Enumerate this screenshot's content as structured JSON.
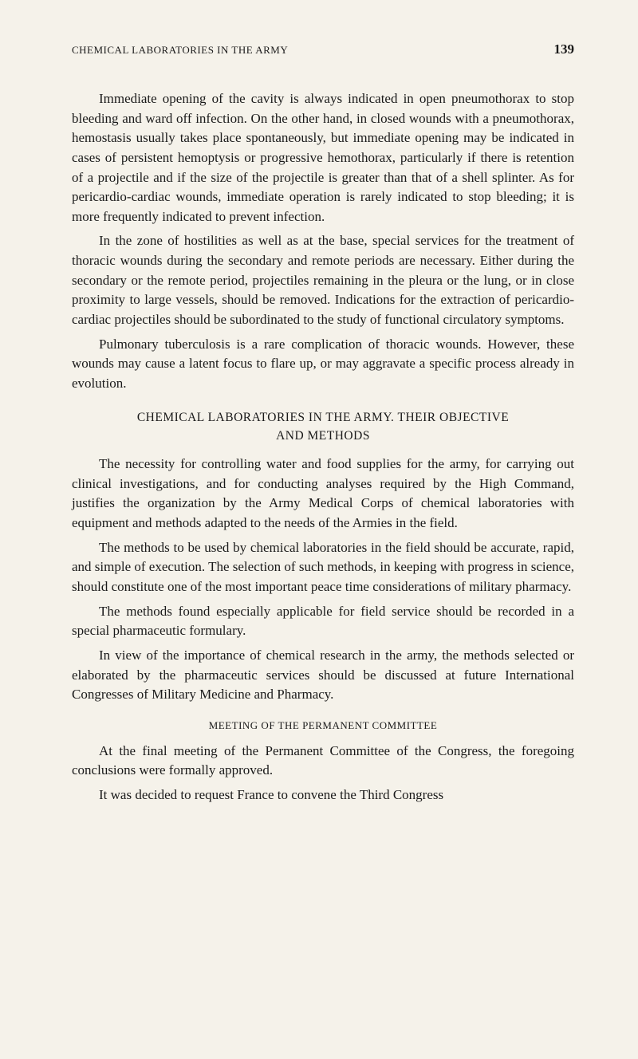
{
  "header": {
    "title": "CHEMICAL LABORATORIES IN THE ARMY",
    "page_number": "139"
  },
  "paragraphs": {
    "p1": "Immediate opening of the cavity is always indicated in open pneumothorax to stop bleeding and ward off infection. On the other hand, in closed wounds with a pneumothorax, hemostasis usually takes place spontaneously, but immediate opening may be indicated in cases of persistent hemoptysis or progressive hemothorax, particularly if there is retention of a projectile and if the size of the projectile is greater than that of a shell splinter. As for pericardio-cardiac wounds, immediate operation is rarely indicated to stop bleeding; it is more frequently indicated to prevent infection.",
    "p2": "In the zone of hostilities as well as at the base, special services for the treatment of thoracic wounds during the secondary and remote periods are necessary. Either during the secondary or the remote period, projectiles remaining in the pleura or the lung, or in close proximity to large vessels, should be removed. Indications for the extraction of pericardio-cardiac projectiles should be subordinated to the study of functional circulatory symptoms.",
    "p3": "Pulmonary tuberculosis is a rare complication of thoracic wounds. However, these wounds may cause a latent focus to flare up, or may aggravate a specific process already in evolution.",
    "p4": "The necessity for controlling water and food supplies for the army, for carrying out clinical investigations, and for conducting analyses required by the High Command, justifies the organization by the Army Medical Corps of chemical laboratories with equipment and methods adapted to the needs of the Armies in the field.",
    "p5": "The methods to be used by chemical laboratories in the field should be accurate, rapid, and simple of execution. The selection of such methods, in keeping with progress in science, should constitute one of the most important peace time considerations of military pharmacy.",
    "p6": "The methods found especially applicable for field service should be recorded in a special pharmaceutic formulary.",
    "p7": "In view of the importance of chemical research in the army, the methods selected or elaborated by the pharmaceutic services should be discussed at future International Congresses of Military Medicine and Pharmacy.",
    "p8": "At the final meeting of the Permanent Committee of the Congress, the foregoing conclusions were formally approved.",
    "p9": "It was decided to request France to convene the Third Congress"
  },
  "headings": {
    "h1_line1": "CHEMICAL LABORATORIES IN THE ARMY. THEIR OBJECTIVE",
    "h1_line2": "AND METHODS",
    "h2": "MEETING OF THE PERMANENT COMMITTEE"
  },
  "styling": {
    "background_color": "#f5f2ea",
    "text_color": "#1a1a1a",
    "body_font_size": 17,
    "heading_font_size": 15.5,
    "subheading_font_size": 13,
    "header_title_font_size": 13,
    "page_number_font_size": 17,
    "line_height": 1.45,
    "text_indent": "2em",
    "font_family": "Georgia, 'Times New Roman', serif"
  }
}
